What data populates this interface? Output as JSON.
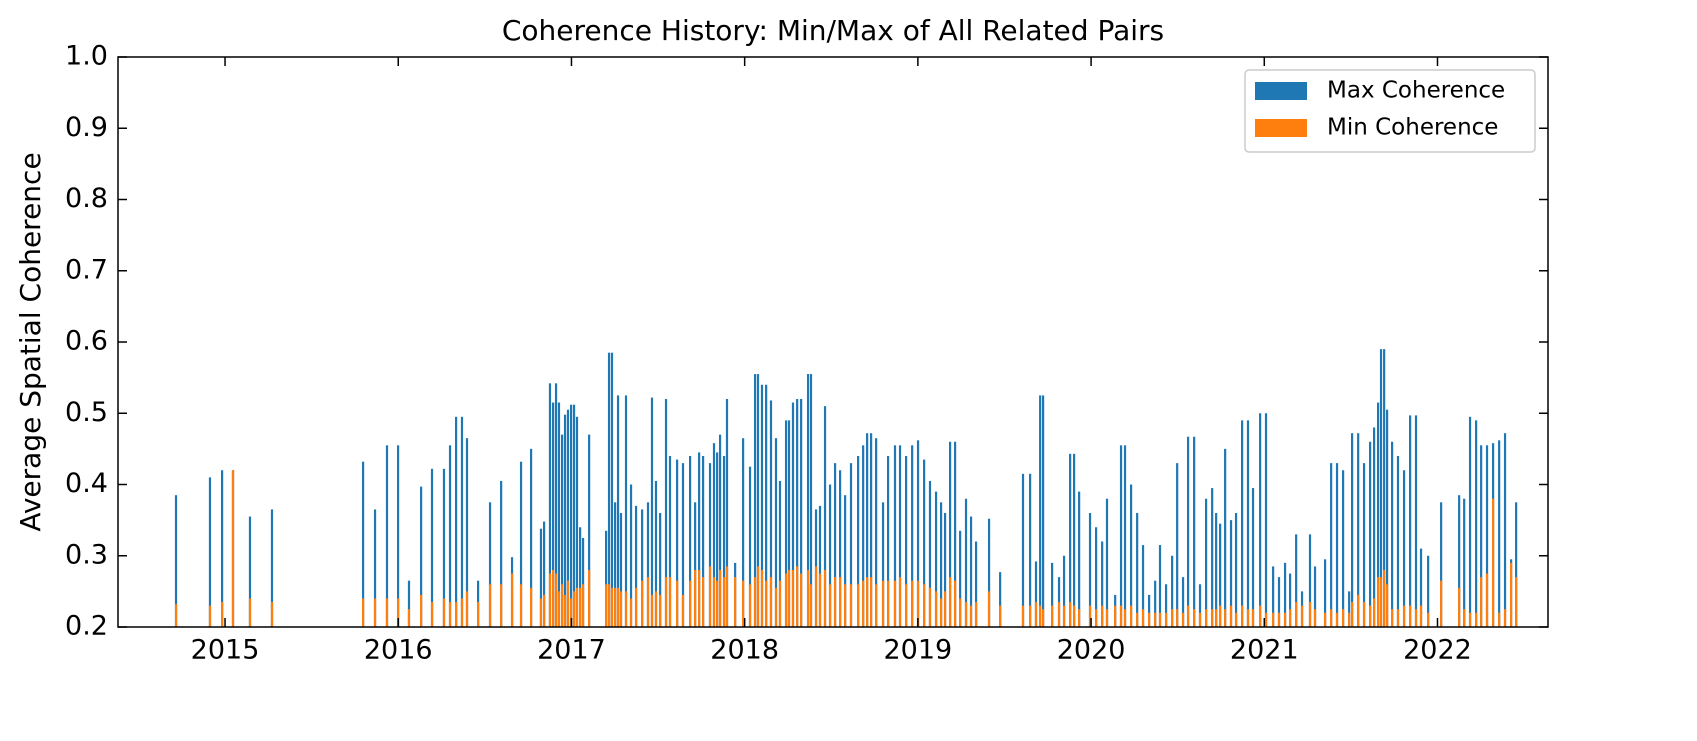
{
  "chart_data": {
    "type": "bar",
    "title": "Coherence History: Min/Max of All Related Pairs",
    "ylabel": "Average Spatial Coherence",
    "x": [
      2014.717,
      2014.913,
      2014.983,
      2015.046,
      2015.144,
      2015.271,
      2015.797,
      2015.866,
      2015.935,
      2015.999,
      2016.062,
      2016.132,
      2016.195,
      2016.264,
      2016.299,
      2016.334,
      2016.368,
      2016.397,
      2016.461,
      2016.53,
      2016.594,
      2016.657,
      2016.709,
      2016.767,
      2016.824,
      2016.842,
      2016.876,
      2016.894,
      2016.911,
      2016.928,
      2016.946,
      2016.963,
      2016.98,
      2016.998,
      2017.015,
      2017.032,
      2017.05,
      2017.067,
      2017.102,
      2017.2,
      2017.217,
      2017.234,
      2017.252,
      2017.269,
      2017.286,
      2017.315,
      2017.344,
      2017.373,
      2017.408,
      2017.442,
      2017.465,
      2017.488,
      2017.512,
      2017.546,
      2017.569,
      2017.61,
      2017.644,
      2017.685,
      2017.714,
      2017.737,
      2017.76,
      2017.8,
      2017.823,
      2017.841,
      2017.858,
      2017.881,
      2017.898,
      2017.945,
      2017.991,
      2018.031,
      2018.06,
      2018.077,
      2018.1,
      2018.124,
      2018.152,
      2018.181,
      2018.204,
      2018.239,
      2018.256,
      2018.279,
      2018.303,
      2018.326,
      2018.366,
      2018.383,
      2018.412,
      2018.435,
      2018.464,
      2018.493,
      2018.522,
      2018.551,
      2018.58,
      2018.614,
      2018.655,
      2018.684,
      2018.707,
      2018.73,
      2018.759,
      2018.799,
      2018.828,
      2018.868,
      2018.897,
      2018.932,
      2018.967,
      2019.001,
      2019.036,
      2019.07,
      2019.105,
      2019.134,
      2019.157,
      2019.186,
      2019.215,
      2019.244,
      2019.278,
      2019.307,
      2019.336,
      2019.411,
      2019.475,
      2019.607,
      2019.648,
      2019.682,
      2019.706,
      2019.723,
      2019.775,
      2019.815,
      2019.844,
      2019.879,
      2019.902,
      2019.931,
      2019.994,
      2020.029,
      2020.064,
      2020.092,
      2020.139,
      2020.173,
      2020.196,
      2020.231,
      2020.266,
      2020.3,
      2020.335,
      2020.37,
      2020.398,
      2020.433,
      2020.468,
      2020.497,
      2020.531,
      2020.56,
      2020.595,
      2020.629,
      2020.664,
      2020.699,
      2020.722,
      2020.745,
      2020.774,
      2020.808,
      2020.837,
      2020.872,
      2020.906,
      2020.935,
      2020.976,
      2021.01,
      2021.051,
      2021.085,
      2021.12,
      2021.149,
      2021.184,
      2021.218,
      2021.264,
      2021.293,
      2021.351,
      2021.386,
      2021.42,
      2021.455,
      2021.49,
      2021.507,
      2021.542,
      2021.576,
      2021.611,
      2021.634,
      2021.657,
      2021.674,
      2021.692,
      2021.709,
      2021.738,
      2021.772,
      2021.807,
      2021.842,
      2021.876,
      2021.905,
      2021.946,
      2022.021,
      2022.125,
      2022.154,
      2022.188,
      2022.223,
      2022.252,
      2022.286,
      2022.321,
      2022.356,
      2022.39,
      2022.425,
      2022.454
    ],
    "series": [
      {
        "name": "Max Coherence",
        "color": "#1f77b4",
        "values": [
          0.385,
          0.41,
          0.42,
          0.42,
          0.355,
          0.365,
          0.432,
          0.365,
          0.455,
          0.455,
          0.265,
          0.397,
          0.422,
          0.422,
          0.455,
          0.495,
          0.495,
          0.465,
          0.265,
          0.375,
          0.405,
          0.298,
          0.432,
          0.45,
          0.338,
          0.348,
          0.542,
          0.515,
          0.542,
          0.515,
          0.47,
          0.498,
          0.505,
          0.512,
          0.512,
          0.495,
          0.34,
          0.325,
          0.47,
          0.335,
          0.585,
          0.585,
          0.375,
          0.525,
          0.36,
          0.525,
          0.4,
          0.37,
          0.365,
          0.375,
          0.522,
          0.405,
          0.36,
          0.52,
          0.44,
          0.435,
          0.43,
          0.44,
          0.375,
          0.445,
          0.44,
          0.43,
          0.458,
          0.445,
          0.47,
          0.44,
          0.52,
          0.29,
          0.465,
          0.425,
          0.555,
          0.555,
          0.54,
          0.54,
          0.518,
          0.465,
          0.405,
          0.49,
          0.49,
          0.515,
          0.52,
          0.52,
          0.555,
          0.555,
          0.365,
          0.37,
          0.51,
          0.4,
          0.43,
          0.42,
          0.385,
          0.43,
          0.44,
          0.455,
          0.472,
          0.472,
          0.465,
          0.375,
          0.44,
          0.455,
          0.455,
          0.44,
          0.455,
          0.462,
          0.435,
          0.405,
          0.39,
          0.375,
          0.36,
          0.46,
          0.46,
          0.335,
          0.38,
          0.355,
          0.32,
          0.352,
          0.277,
          0.415,
          0.415,
          0.292,
          0.525,
          0.525,
          0.29,
          0.27,
          0.3,
          0.443,
          0.443,
          0.39,
          0.36,
          0.34,
          0.32,
          0.38,
          0.245,
          0.455,
          0.455,
          0.4,
          0.36,
          0.315,
          0.245,
          0.265,
          0.315,
          0.26,
          0.3,
          0.43,
          0.27,
          0.467,
          0.467,
          0.26,
          0.38,
          0.395,
          0.36,
          0.345,
          0.45,
          0.35,
          0.36,
          0.49,
          0.49,
          0.395,
          0.5,
          0.5,
          0.285,
          0.27,
          0.29,
          0.275,
          0.33,
          0.25,
          0.33,
          0.285,
          0.295,
          0.43,
          0.43,
          0.42,
          0.25,
          0.472,
          0.472,
          0.43,
          0.46,
          0.48,
          0.515,
          0.59,
          0.59,
          0.505,
          0.46,
          0.44,
          0.42,
          0.497,
          0.497,
          0.31,
          0.3,
          0.375,
          0.385,
          0.38,
          0.495,
          0.49,
          0.455,
          0.455,
          0.458,
          0.462,
          0.472,
          0.295,
          0.375
        ]
      },
      {
        "name": "Min Coherence",
        "color": "#ff7f0e",
        "values": [
          0.232,
          0.23,
          0.235,
          0.42,
          0.24,
          0.235,
          0.24,
          0.24,
          0.24,
          0.24,
          0.225,
          0.245,
          0.235,
          0.24,
          0.235,
          0.235,
          0.24,
          0.25,
          0.235,
          0.26,
          0.26,
          0.275,
          0.26,
          0.255,
          0.24,
          0.245,
          0.275,
          0.28,
          0.275,
          0.25,
          0.26,
          0.245,
          0.265,
          0.24,
          0.25,
          0.255,
          0.255,
          0.26,
          0.28,
          0.26,
          0.26,
          0.255,
          0.255,
          0.255,
          0.25,
          0.25,
          0.24,
          0.255,
          0.265,
          0.27,
          0.245,
          0.25,
          0.245,
          0.27,
          0.27,
          0.265,
          0.245,
          0.265,
          0.28,
          0.28,
          0.27,
          0.285,
          0.27,
          0.265,
          0.28,
          0.27,
          0.285,
          0.27,
          0.265,
          0.26,
          0.27,
          0.285,
          0.28,
          0.265,
          0.27,
          0.255,
          0.265,
          0.275,
          0.28,
          0.28,
          0.285,
          0.275,
          0.28,
          0.26,
          0.285,
          0.275,
          0.28,
          0.26,
          0.27,
          0.27,
          0.26,
          0.26,
          0.26,
          0.265,
          0.27,
          0.27,
          0.26,
          0.265,
          0.265,
          0.265,
          0.27,
          0.26,
          0.265,
          0.265,
          0.26,
          0.255,
          0.25,
          0.24,
          0.25,
          0.27,
          0.265,
          0.24,
          0.235,
          0.23,
          0.235,
          0.25,
          0.23,
          0.23,
          0.23,
          0.235,
          0.23,
          0.225,
          0.23,
          0.235,
          0.23,
          0.235,
          0.23,
          0.225,
          0.23,
          0.225,
          0.23,
          0.225,
          0.23,
          0.23,
          0.225,
          0.23,
          0.22,
          0.225,
          0.22,
          0.22,
          0.22,
          0.22,
          0.225,
          0.225,
          0.22,
          0.23,
          0.225,
          0.22,
          0.225,
          0.225,
          0.225,
          0.23,
          0.225,
          0.23,
          0.22,
          0.23,
          0.225,
          0.225,
          0.23,
          0.22,
          0.22,
          0.22,
          0.22,
          0.225,
          0.235,
          0.23,
          0.235,
          0.225,
          0.22,
          0.225,
          0.22,
          0.225,
          0.22,
          0.235,
          0.245,
          0.235,
          0.23,
          0.24,
          0.27,
          0.27,
          0.28,
          0.26,
          0.225,
          0.225,
          0.23,
          0.23,
          0.225,
          0.23,
          0.22,
          0.265,
          0.255,
          0.225,
          0.22,
          0.22,
          0.27,
          0.275,
          0.38,
          0.22,
          0.225,
          0.29,
          0.27
        ]
      }
    ],
    "xlim": [
      2014.382,
      2022.638
    ],
    "xticks": [
      2015,
      2016,
      2017,
      2018,
      2019,
      2020,
      2021,
      2022
    ],
    "ylim": [
      0.2,
      1.0
    ],
    "yticks": [
      0.2,
      0.3,
      0.4,
      0.5,
      0.6,
      0.7,
      0.8,
      0.9,
      {
        "value": 1.0,
        "label": "1.0"
      }
    ],
    "legend": "upper right"
  }
}
